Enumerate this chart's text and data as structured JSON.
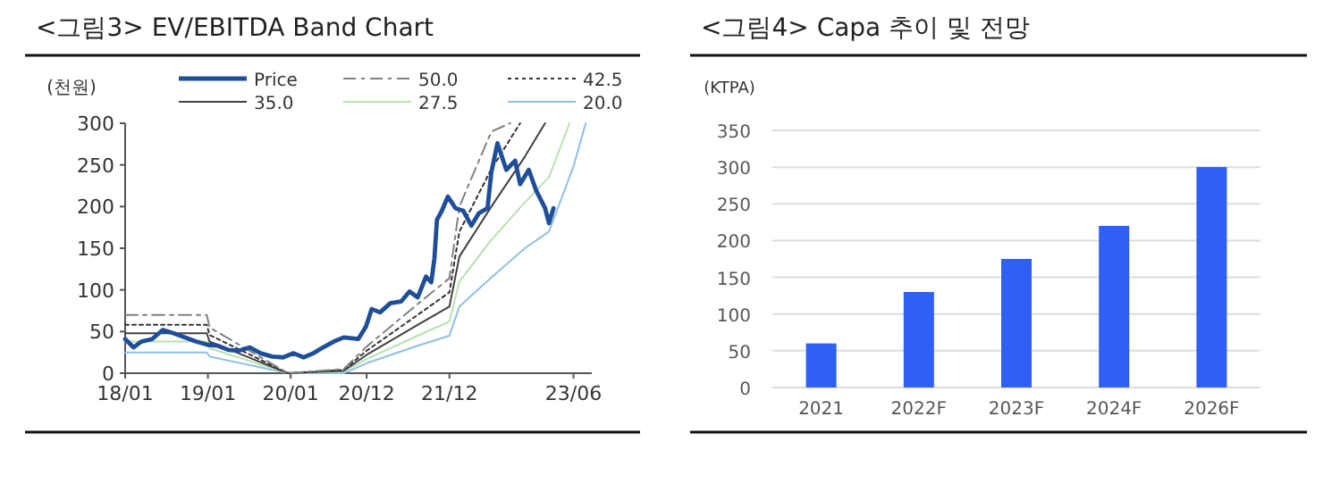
{
  "chart_data": [
    {
      "type": "line",
      "title": "<그림3> EV/EBITDA Band Chart",
      "ylabel": "(천원)",
      "legend": "top",
      "xlim": [
        "2018-01-01",
        "2023-08-21"
      ],
      "xticks": [
        {
          "value": "2018-01",
          "label": "18/01"
        },
        {
          "value": "2019-01",
          "label": "19/01"
        },
        {
          "value": "2020-01",
          "label": "20/01"
        },
        {
          "value": "2020-12",
          "label": "20/12"
        },
        {
          "value": "2021-12",
          "label": "21/12"
        },
        {
          "value": "2023-06",
          "label": "23/06"
        }
      ],
      "ylim": [
        0,
        300
      ],
      "yticks": [
        0,
        50,
        100,
        150,
        200,
        250,
        300
      ],
      "series": [
        {
          "name": "Price",
          "color": "#1f4e99",
          "line_style": "solid",
          "x": [
            "2018-01-01",
            "2018-02-07",
            "2018-03-13",
            "2018-04-30",
            "2018-06-16",
            "2018-08-03",
            "2018-09-20",
            "2018-11-10",
            "2019-01-01",
            "2019-02-14",
            "2019-04-01",
            "2019-05-18",
            "2019-07-05",
            "2019-08-21",
            "2019-10-12",
            "2019-11-29",
            "2020-01-14",
            "2020-02-27",
            "2020-04-10",
            "2020-05-23",
            "2020-07-09",
            "2020-08-22",
            "2020-10-25",
            "2020-11-28",
            "2020-12-23",
            "2021-01-29",
            "2021-03-15",
            "2021-05-02",
            "2021-06-08",
            "2021-07-14",
            "2021-08-20",
            "2021-09-12",
            "2021-09-26",
            "2021-10-07",
            "2021-10-29",
            "2021-11-24",
            "2021-12-28",
            "2022-01-31",
            "2022-03-08",
            "2022-04-10",
            "2022-05-18",
            "2022-06-04",
            "2022-07-01",
            "2022-08-09",
            "2022-09-17",
            "2022-10-09",
            "2022-11-16",
            "2022-12-19",
            "2023-01-27",
            "2023-02-13",
            "2023-03-05"
          ],
          "values": [
            41,
            31,
            38,
            41,
            52,
            48,
            43,
            38,
            34,
            33,
            28,
            27,
            31,
            24,
            20,
            19,
            24,
            19,
            24,
            31,
            38,
            43,
            41,
            56,
            77,
            73,
            84,
            86,
            98,
            91,
            116,
            109,
            138,
            184,
            195,
            212,
            198,
            195,
            177,
            192,
            198,
            241,
            276,
            244,
            255,
            227,
            244,
            219,
            198,
            180,
            198
          ]
        },
        {
          "name": "50.0",
          "color": "#808080",
          "line_style": "dashed",
          "x": [
            "2018-01-01",
            "2018-12-27",
            "2019-01-08",
            "2019-12-20",
            "2020-08-22",
            "2020-12-01",
            "2021-07-14",
            "2021-12-01",
            "2022-01-14",
            "2022-06-04",
            "2022-08-26"
          ],
          "values": [
            70,
            70,
            55,
            0,
            5,
            32,
            83,
            114,
            200,
            290,
            300
          ]
        },
        {
          "name": "42.5",
          "color": "#333333",
          "line_style": "dotted",
          "x": [
            "2018-01-01",
            "2018-12-27",
            "2019-01-08",
            "2019-12-20",
            "2020-08-22",
            "2020-12-01",
            "2021-07-14",
            "2021-12-01",
            "2022-01-14",
            "2022-06-04",
            "2022-10-09"
          ],
          "values": [
            58,
            58,
            46,
            0,
            4,
            27,
            70,
            97,
            170,
            245,
            300
          ]
        },
        {
          "name": "35.0",
          "color": "#404040",
          "line_style": "solid",
          "x": [
            "2018-01-01",
            "2018-12-27",
            "2019-01-08",
            "2019-12-20",
            "2020-08-22",
            "2020-12-01",
            "2021-07-14",
            "2021-12-01",
            "2022-01-14",
            "2022-06-04",
            "2022-10-30",
            "2023-01-27"
          ],
          "values": [
            48,
            48,
            38,
            0,
            3,
            22,
            58,
            80,
            140,
            200,
            260,
            300
          ]
        },
        {
          "name": "27.5",
          "color": "#b9e0b0",
          "line_style": "solid",
          "x": [
            "2018-01-01",
            "2018-12-27",
            "2019-01-08",
            "2019-12-20",
            "2020-08-22",
            "2020-12-01",
            "2021-07-14",
            "2021-12-01",
            "2022-01-14",
            "2022-06-04",
            "2022-10-30",
            "2023-02-13",
            "2023-05-15"
          ],
          "values": [
            38,
            38,
            30,
            0,
            2,
            17,
            45,
            62,
            110,
            160,
            205,
            235,
            300
          ]
        },
        {
          "name": "20.0",
          "color": "#8fbfe8",
          "line_style": "solid",
          "x": [
            "2018-01-01",
            "2018-12-27",
            "2019-01-08",
            "2019-12-20",
            "2020-08-22",
            "2020-12-01",
            "2021-07-14",
            "2021-12-01",
            "2022-01-14",
            "2022-06-04",
            "2022-10-30",
            "2023-02-13",
            "2023-06-01",
            "2023-07-25"
          ],
          "values": [
            25,
            25,
            20,
            0,
            0,
            12,
            33,
            45,
            80,
            115,
            150,
            170,
            248,
            300
          ]
        }
      ]
    },
    {
      "type": "bar",
      "title": "<그림4> Capa 추이 및 전망",
      "ylabel": "(KTPA)",
      "grid": "y",
      "categories": [
        "2021",
        "2022F",
        "2023F",
        "2024F",
        "2026F"
      ],
      "values": [
        60,
        130,
        175,
        220,
        300
      ],
      "color": "#2f5ff5",
      "ylim": [
        0,
        350
      ],
      "yticks": [
        0,
        50,
        100,
        150,
        200,
        250,
        300,
        350
      ]
    }
  ]
}
